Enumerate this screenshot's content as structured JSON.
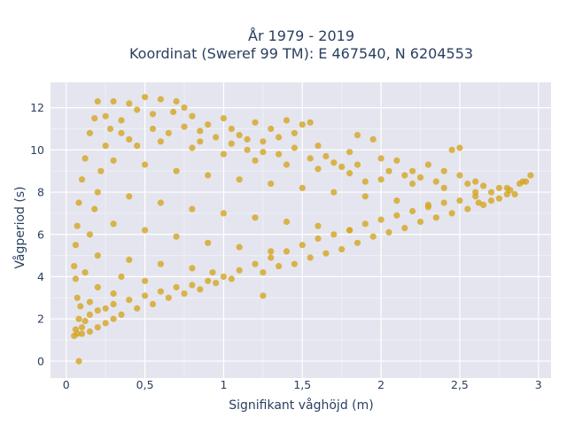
{
  "chart_data": {
    "type": "scatter",
    "title": [
      "År 1979 - 2019",
      "Koordinat (Sweref 99 TM): E 467540, N 6204553"
    ],
    "xlabel": "Signifikant våghöjd (m)",
    "ylabel": "Vågperiod (s)",
    "xlim": [
      -0.1,
      3.08
    ],
    "ylim": [
      -0.8,
      13.2
    ],
    "x_ticks": [
      0,
      0.5,
      1,
      1.5,
      2,
      2.5,
      3
    ],
    "x_tick_labels": [
      "0",
      "0,5",
      "1",
      "1,5",
      "2",
      "2,5",
      "3"
    ],
    "y_ticks": [
      0,
      2,
      4,
      6,
      8,
      10,
      12
    ],
    "y_tick_labels": [
      "0",
      "2",
      "4",
      "6",
      "8",
      "10",
      "12"
    ],
    "grid": true,
    "marker_color": "#D4A520",
    "plot_bg": "#E5E5EF",
    "points": [
      [
        0.08,
        0.0
      ],
      [
        0.05,
        1.2
      ],
      [
        0.06,
        1.5
      ],
      [
        0.07,
        1.3
      ],
      [
        0.1,
        1.6
      ],
      [
        0.12,
        1.9
      ],
      [
        0.15,
        2.2
      ],
      [
        0.2,
        2.4
      ],
      [
        0.25,
        2.5
      ],
      [
        0.3,
        2.7
      ],
      [
        0.4,
        2.9
      ],
      [
        0.5,
        3.1
      ],
      [
        0.6,
        3.3
      ],
      [
        0.7,
        3.5
      ],
      [
        0.8,
        3.6
      ],
      [
        0.9,
        3.8
      ],
      [
        1.0,
        4.0
      ],
      [
        1.1,
        4.3
      ],
      [
        1.2,
        4.6
      ],
      [
        1.3,
        4.9
      ],
      [
        1.4,
        5.2
      ],
      [
        1.5,
        5.5
      ],
      [
        1.6,
        5.8
      ],
      [
        1.7,
        6.0
      ],
      [
        1.8,
        6.2
      ],
      [
        1.9,
        6.5
      ],
      [
        2.0,
        6.7
      ],
      [
        2.1,
        6.9
      ],
      [
        2.2,
        7.1
      ],
      [
        2.3,
        7.3
      ],
      [
        2.4,
        7.5
      ],
      [
        2.5,
        7.6
      ],
      [
        2.6,
        7.8
      ],
      [
        2.7,
        8.0
      ],
      [
        2.8,
        8.2
      ],
      [
        2.9,
        8.5
      ],
      [
        2.95,
        8.8
      ],
      [
        2.92,
        8.5
      ],
      [
        2.88,
        8.4
      ],
      [
        2.85,
        7.9
      ],
      [
        2.6,
        8.5
      ],
      [
        2.5,
        8.8
      ],
      [
        2.4,
        9.0
      ],
      [
        2.5,
        10.1
      ],
      [
        2.45,
        10.0
      ],
      [
        2.3,
        9.3
      ],
      [
        2.2,
        9.0
      ],
      [
        2.1,
        9.5
      ],
      [
        2.0,
        9.6
      ],
      [
        1.95,
        10.5
      ],
      [
        1.9,
        8.5
      ],
      [
        1.85,
        10.7
      ],
      [
        1.8,
        9.9
      ],
      [
        1.7,
        9.4
      ],
      [
        1.6,
        10.2
      ],
      [
        1.55,
        11.3
      ],
      [
        1.5,
        11.2
      ],
      [
        1.45,
        10.8
      ],
      [
        1.4,
        11.4
      ],
      [
        1.35,
        10.6
      ],
      [
        1.3,
        11.0
      ],
      [
        1.25,
        10.4
      ],
      [
        1.2,
        11.3
      ],
      [
        1.15,
        10.0
      ],
      [
        1.1,
        10.7
      ],
      [
        1.05,
        11.0
      ],
      [
        1.0,
        11.5
      ],
      [
        0.95,
        10.6
      ],
      [
        0.9,
        11.2
      ],
      [
        0.85,
        10.4
      ],
      [
        0.8,
        11.6
      ],
      [
        0.75,
        12.0
      ],
      [
        0.7,
        12.3
      ],
      [
        0.68,
        11.8
      ],
      [
        0.6,
        12.4
      ],
      [
        0.55,
        11.7
      ],
      [
        0.5,
        12.5
      ],
      [
        0.45,
        11.9
      ],
      [
        0.4,
        12.2
      ],
      [
        0.35,
        11.4
      ],
      [
        0.3,
        12.3
      ],
      [
        0.25,
        11.6
      ],
      [
        0.2,
        12.3
      ],
      [
        0.18,
        11.5
      ],
      [
        0.15,
        10.8
      ],
      [
        0.12,
        9.6
      ],
      [
        0.1,
        8.6
      ],
      [
        0.08,
        7.5
      ],
      [
        0.07,
        6.4
      ],
      [
        0.06,
        5.5
      ],
      [
        0.05,
        4.5
      ],
      [
        0.06,
        3.9
      ],
      [
        0.07,
        3.0
      ],
      [
        0.09,
        2.6
      ],
      [
        0.08,
        2.0
      ],
      [
        0.1,
        1.3
      ],
      [
        0.15,
        1.4
      ],
      [
        0.2,
        1.6
      ],
      [
        0.25,
        1.8
      ],
      [
        0.3,
        2.0
      ],
      [
        0.35,
        2.2
      ],
      [
        0.45,
        2.5
      ],
      [
        0.55,
        2.7
      ],
      [
        0.65,
        3.0
      ],
      [
        0.75,
        3.2
      ],
      [
        0.85,
        3.4
      ],
      [
        0.95,
        3.7
      ],
      [
        1.05,
        3.9
      ],
      [
        1.25,
        4.2
      ],
      [
        1.35,
        4.5
      ],
      [
        1.45,
        4.6
      ],
      [
        1.55,
        4.9
      ],
      [
        1.65,
        5.1
      ],
      [
        1.75,
        5.3
      ],
      [
        1.85,
        5.6
      ],
      [
        1.95,
        5.9
      ],
      [
        2.05,
        6.1
      ],
      [
        2.15,
        6.3
      ],
      [
        2.25,
        6.6
      ],
      [
        2.35,
        6.8
      ],
      [
        2.45,
        7.0
      ],
      [
        2.55,
        7.2
      ],
      [
        2.65,
        7.4
      ],
      [
        2.75,
        7.7
      ],
      [
        1.25,
        3.1
      ],
      [
        0.93,
        4.2
      ],
      [
        0.35,
        4.0
      ],
      [
        0.4,
        10.5
      ],
      [
        0.6,
        10.4
      ],
      [
        0.8,
        10.1
      ],
      [
        1.0,
        9.8
      ],
      [
        1.2,
        9.5
      ],
      [
        1.4,
        9.3
      ],
      [
        1.6,
        9.1
      ],
      [
        1.8,
        8.9
      ],
      [
        2.0,
        8.6
      ],
      [
        2.2,
        8.4
      ],
      [
        2.4,
        8.2
      ],
      [
        2.6,
        8.0
      ],
      [
        2.8,
        7.9
      ],
      [
        0.3,
        9.5
      ],
      [
        0.5,
        9.3
      ],
      [
        0.7,
        9.0
      ],
      [
        0.9,
        8.8
      ],
      [
        1.1,
        8.6
      ],
      [
        1.3,
        8.4
      ],
      [
        1.5,
        8.2
      ],
      [
        1.7,
        8.0
      ],
      [
        1.9,
        7.8
      ],
      [
        2.1,
        7.6
      ],
      [
        2.3,
        7.4
      ],
      [
        0.2,
        8.0
      ],
      [
        0.4,
        7.8
      ],
      [
        0.6,
        7.5
      ],
      [
        0.8,
        7.2
      ],
      [
        1.0,
        7.0
      ],
      [
        1.2,
        6.8
      ],
      [
        1.4,
        6.6
      ],
      [
        1.6,
        6.4
      ],
      [
        1.8,
        6.2
      ],
      [
        0.3,
        6.5
      ],
      [
        0.5,
        6.2
      ],
      [
        0.7,
        5.9
      ],
      [
        0.9,
        5.6
      ],
      [
        1.1,
        5.4
      ],
      [
        1.3,
        5.2
      ],
      [
        0.2,
        5.0
      ],
      [
        0.4,
        4.8
      ],
      [
        0.6,
        4.6
      ],
      [
        0.8,
        4.4
      ],
      [
        0.2,
        3.5
      ],
      [
        0.3,
        3.2
      ],
      [
        0.5,
        3.8
      ],
      [
        0.15,
        2.8
      ],
      [
        0.12,
        4.2
      ],
      [
        0.15,
        6.0
      ],
      [
        0.18,
        7.2
      ],
      [
        0.22,
        9.0
      ],
      [
        0.25,
        10.2
      ],
      [
        0.28,
        11.0
      ],
      [
        0.35,
        10.8
      ],
      [
        0.45,
        10.2
      ],
      [
        0.55,
        11.0
      ],
      [
        0.65,
        10.8
      ],
      [
        0.75,
        11.1
      ],
      [
        0.85,
        10.9
      ],
      [
        1.05,
        10.3
      ],
      [
        1.15,
        10.5
      ],
      [
        1.25,
        9.9
      ],
      [
        1.35,
        9.8
      ],
      [
        1.45,
        10.1
      ],
      [
        1.55,
        9.6
      ],
      [
        1.65,
        9.7
      ],
      [
        1.75,
        9.2
      ],
      [
        1.85,
        9.3
      ],
      [
        2.05,
        9.0
      ],
      [
        2.15,
        8.8
      ],
      [
        2.25,
        8.7
      ],
      [
        2.35,
        8.5
      ],
      [
        2.55,
        8.4
      ],
      [
        2.65,
        8.3
      ],
      [
        2.75,
        8.2
      ],
      [
        2.82,
        8.1
      ],
      [
        2.7,
        7.6
      ],
      [
        2.62,
        7.5
      ]
    ]
  }
}
